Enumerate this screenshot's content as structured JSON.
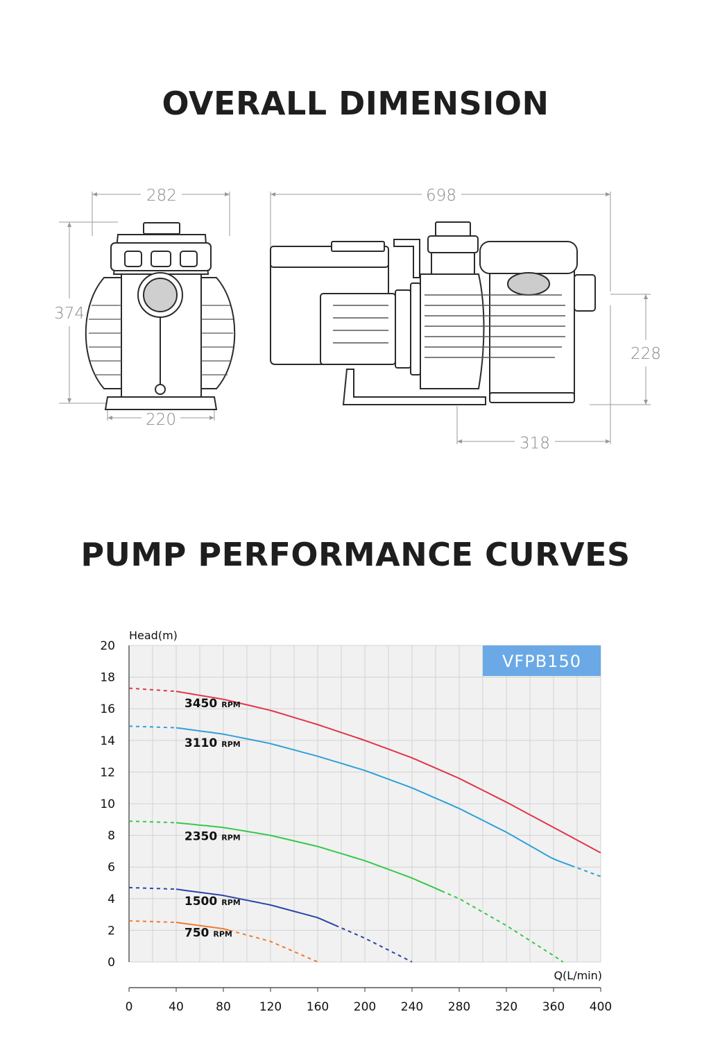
{
  "sections": {
    "dimension_title": "OVERALL DIMENSION",
    "curves_title": "PUMP PERFORMANCE CURVES"
  },
  "dimensions": {
    "front_width_top": "282",
    "front_height": "374",
    "front_base_width": "220",
    "side_length": "698",
    "side_inlet_height": "228",
    "side_inlet_offset": "318"
  },
  "chart_data": {
    "type": "line",
    "model_label": "VFPB150",
    "ylabel": "Head(m)",
    "xlabel": "Q(L/min)",
    "xlim": [
      0,
      400
    ],
    "ylim": [
      0,
      20
    ],
    "x_ticks": [
      0,
      40,
      80,
      120,
      160,
      200,
      240,
      280,
      320,
      360,
      400
    ],
    "y_ticks": [
      0,
      2,
      4,
      6,
      8,
      10,
      12,
      14,
      16,
      18,
      20
    ],
    "grid": true,
    "colors": {
      "rpm_3450": "#e0354a",
      "rpm_3110": "#2fa0d8",
      "rpm_2350": "#36c84a",
      "rpm_1500": "#2a45a8",
      "rpm_750": "#f07a30",
      "model_badge": "#6aa9e6"
    },
    "series": [
      {
        "name": "3450",
        "unit": "RPM",
        "color_key": "rpm_3450",
        "x": [
          0,
          40,
          80,
          120,
          160,
          200,
          240,
          280,
          320,
          360,
          400
        ],
        "y": [
          17.3,
          17.1,
          16.6,
          15.9,
          15.0,
          14.0,
          12.9,
          11.6,
          10.1,
          8.5,
          6.9
        ],
        "solid_from": 40,
        "solid_to": 400
      },
      {
        "name": "3110",
        "unit": "RPM",
        "color_key": "rpm_3110",
        "x": [
          0,
          40,
          80,
          120,
          160,
          200,
          240,
          280,
          320,
          360,
          400
        ],
        "y": [
          14.9,
          14.8,
          14.4,
          13.8,
          13.0,
          12.1,
          11.0,
          9.7,
          8.2,
          6.5,
          5.4
        ],
        "solid_from": 40,
        "solid_to": 375
      },
      {
        "name": "2350",
        "unit": "RPM",
        "color_key": "rpm_2350",
        "x": [
          0,
          40,
          80,
          120,
          160,
          200,
          240,
          280,
          320,
          360,
          368
        ],
        "y": [
          8.9,
          8.8,
          8.5,
          8.0,
          7.3,
          6.4,
          5.3,
          4.0,
          2.3,
          0.4,
          0.0
        ],
        "solid_from": 40,
        "solid_to": 265
      },
      {
        "name": "1500",
        "unit": "RPM",
        "color_key": "rpm_1500",
        "x": [
          0,
          40,
          80,
          120,
          160,
          200,
          240
        ],
        "y": [
          4.7,
          4.6,
          4.2,
          3.6,
          2.8,
          1.5,
          0.0
        ],
        "solid_from": 40,
        "solid_to": 175
      },
      {
        "name": "750",
        "unit": "RPM",
        "color_key": "rpm_750",
        "x": [
          0,
          40,
          80,
          120,
          160
        ],
        "y": [
          2.6,
          2.5,
          2.1,
          1.3,
          0.0
        ],
        "solid_from": 40,
        "solid_to": 85
      }
    ]
  }
}
